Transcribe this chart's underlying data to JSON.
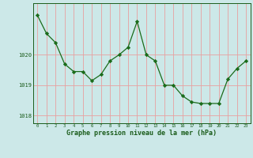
{
  "x": [
    0,
    1,
    2,
    3,
    4,
    5,
    6,
    7,
    8,
    9,
    10,
    11,
    12,
    13,
    14,
    15,
    16,
    17,
    18,
    19,
    20,
    21,
    22,
    23
  ],
  "y": [
    1021.3,
    1020.7,
    1020.4,
    1019.7,
    1019.45,
    1019.45,
    1019.15,
    1019.35,
    1019.8,
    1020.0,
    1020.25,
    1021.1,
    1020.0,
    1019.8,
    1019.0,
    1019.0,
    1018.65,
    1018.45,
    1018.4,
    1018.4,
    1018.4,
    1019.2,
    1019.55,
    1019.8
  ],
  "line_color": "#1a6b1a",
  "marker_color": "#1a6b1a",
  "bg_color": "#cce8e8",
  "grid_color": "#e8a0a0",
  "axis_color": "#1a5c1a",
  "xlabel": "Graphe pression niveau de la mer (hPa)",
  "xlabel_fontsize": 6.0,
  "yticks": [
    1018,
    1019,
    1020
  ],
  "ylim": [
    1017.75,
    1021.7
  ],
  "xlim": [
    -0.5,
    23.5
  ],
  "xticks": [
    0,
    1,
    2,
    3,
    4,
    5,
    6,
    7,
    8,
    9,
    10,
    11,
    12,
    13,
    14,
    15,
    16,
    17,
    18,
    19,
    20,
    21,
    22,
    23
  ]
}
